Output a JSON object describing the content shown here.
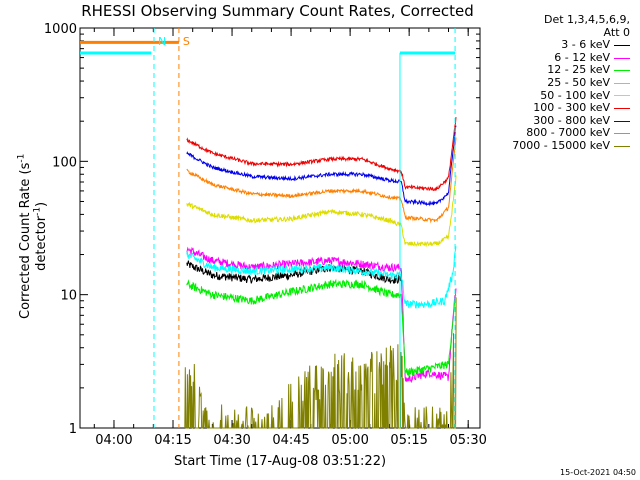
{
  "title": "RHESSI Observing Summary Count Rates, Corrected",
  "legend": {
    "header": "Det 1,3,4,5,6,9,",
    "header2": "Att 0",
    "entries": [
      {
        "label": "3 - 6 keV",
        "color": "#000000"
      },
      {
        "label": "6 - 12 keV",
        "color": "#ff00ff"
      },
      {
        "label": "12 - 25 keV",
        "color": "#00ee00"
      },
      {
        "label": "25 - 50 keV",
        "color": "#00ffff"
      },
      {
        "label": "50 - 100 keV",
        "color": "#dddd00"
      },
      {
        "label": "100 - 300 keV",
        "color": "#ee0000"
      },
      {
        "label": "300 - 800 keV",
        "color": "#0000ee"
      },
      {
        "label": "800 - 7000 keV",
        "color": "#ff8000"
      },
      {
        "label": "7000 - 15000 keV",
        "color": "#808000"
      }
    ]
  },
  "timestamp": "15-Oct-2021 04:50",
  "chart_data": {
    "type": "line",
    "title": "RHESSI Observing Summary Count Rates, Corrected",
    "xlabel": "Start Time (17-Aug-08 03:51:22)",
    "ylabel_pre": "Corrected Count Rate (s",
    "ylabel_sup1": "-1",
    "ylabel_mid": " detector",
    "ylabel_sup2": "-1",
    "ylabel_post": ")",
    "y_scale": "log",
    "ylim": [
      1,
      1000
    ],
    "xlim": [
      "03:51:22",
      "05:33:00"
    ],
    "x_ticks": [
      "04:00",
      "04:15",
      "04:30",
      "04:45",
      "05:00",
      "05:15",
      "05:30"
    ],
    "y_ticks": [
      "1",
      "10",
      "100",
      "1000"
    ],
    "markers": [
      {
        "label": "N",
        "color": "#00ffff",
        "times": [
          "04:10:10",
          "05:26:40"
        ]
      },
      {
        "label": "S",
        "color": "#ff8000",
        "times": [
          "04:16:30"
        ]
      }
    ],
    "flags": [
      {
        "name": "N",
        "color": "#00ffff",
        "y": 650,
        "ranges": [
          [
            "03:51:22",
            "04:09:30"
          ],
          [
            "05:12:40",
            "05:26:40"
          ]
        ]
      },
      {
        "name": "S",
        "color": "#ff8000",
        "y": 780,
        "ranges": [
          [
            "03:51:22",
            "04:16:30"
          ]
        ]
      }
    ],
    "vertical_lines": [
      {
        "color": "#00ffff",
        "time": "05:12:40"
      }
    ],
    "series": [
      {
        "name": "3 - 6 keV",
        "color": "#000000",
        "noise": 0.07,
        "points": [
          [
            "04:18:30",
            17
          ],
          [
            "04:25",
            14
          ],
          [
            "04:35",
            13
          ],
          [
            "04:45",
            14
          ],
          [
            "04:55",
            16
          ],
          [
            "05:03",
            15
          ],
          [
            "05:10",
            13
          ],
          [
            "05:13",
            13
          ]
        ]
      },
      {
        "name": "6 - 12 keV",
        "color": "#ff00ff",
        "noise": 0.07,
        "points": [
          [
            "04:18:30",
            22
          ],
          [
            "04:25",
            18
          ],
          [
            "04:35",
            16
          ],
          [
            "04:45",
            17
          ],
          [
            "04:55",
            18
          ],
          [
            "05:03",
            17
          ],
          [
            "05:10",
            16
          ],
          [
            "05:13",
            16
          ],
          [
            "05:14",
            2.3
          ],
          [
            "05:20",
            2.6
          ],
          [
            "05:25",
            2.4
          ],
          [
            "05:26",
            6
          ],
          [
            "05:27",
            12
          ]
        ]
      },
      {
        "name": "12 - 25 keV",
        "color": "#00ee00",
        "noise": 0.07,
        "points": [
          [
            "04:18:30",
            12
          ],
          [
            "04:25",
            10
          ],
          [
            "04:35",
            9
          ],
          [
            "04:45",
            10.5
          ],
          [
            "04:55",
            12
          ],
          [
            "05:03",
            12
          ],
          [
            "05:10",
            10
          ],
          [
            "05:13",
            10
          ],
          [
            "05:14",
            2.6
          ],
          [
            "05:20",
            2.8
          ],
          [
            "05:25",
            3
          ],
          [
            "05:26",
            6
          ],
          [
            "05:27",
            11
          ]
        ]
      },
      {
        "name": "25 - 50 keV",
        "color": "#00ffff",
        "noise": 0.07,
        "points": [
          [
            "04:18:30",
            20
          ],
          [
            "04:25",
            16
          ],
          [
            "04:35",
            15
          ],
          [
            "04:45",
            15.5
          ],
          [
            "04:55",
            16
          ],
          [
            "05:03",
            15
          ],
          [
            "05:10",
            14
          ],
          [
            "05:13",
            14
          ],
          [
            "05:14",
            8.5
          ],
          [
            "05:20",
            8.5
          ],
          [
            "05:24",
            9
          ],
          [
            "05:26",
            14
          ],
          [
            "05:27",
            25
          ]
        ]
      },
      {
        "name": "50 - 100 keV",
        "color": "#dddd00",
        "noise": 0.04,
        "points": [
          [
            "04:18:30",
            48
          ],
          [
            "04:25",
            40
          ],
          [
            "04:35",
            36
          ],
          [
            "04:45",
            37
          ],
          [
            "04:55",
            42
          ],
          [
            "05:03",
            40
          ],
          [
            "05:10",
            36
          ],
          [
            "05:13",
            33
          ],
          [
            "05:14",
            24
          ],
          [
            "05:22",
            24
          ],
          [
            "05:25",
            27
          ],
          [
            "05:26",
            45
          ],
          [
            "05:27",
            80
          ]
        ]
      },
      {
        "name": "100 - 300 keV",
        "color": "#ee0000",
        "noise": 0.03,
        "points": [
          [
            "04:18:30",
            145
          ],
          [
            "04:25",
            115
          ],
          [
            "04:35",
            96
          ],
          [
            "04:45",
            95
          ],
          [
            "04:55",
            104
          ],
          [
            "05:03",
            104
          ],
          [
            "05:10",
            88
          ],
          [
            "05:13",
            84
          ],
          [
            "05:14",
            64
          ],
          [
            "05:22",
            62
          ],
          [
            "05:25",
            75
          ],
          [
            "05:26",
            130
          ],
          [
            "05:27",
            220
          ]
        ]
      },
      {
        "name": "300 - 800 keV",
        "color": "#0000ee",
        "noise": 0.03,
        "points": [
          [
            "04:18:30",
            115
          ],
          [
            "04:25",
            90
          ],
          [
            "04:35",
            77
          ],
          [
            "04:45",
            74
          ],
          [
            "04:55",
            80
          ],
          [
            "05:03",
            80
          ],
          [
            "05:10",
            72
          ],
          [
            "05:13",
            70
          ],
          [
            "05:14",
            50
          ],
          [
            "05:22",
            48
          ],
          [
            "05:25",
            58
          ],
          [
            "05:26",
            110
          ],
          [
            "05:27",
            200
          ]
        ]
      },
      {
        "name": "800 - 7000 keV",
        "color": "#ff8000",
        "noise": 0.03,
        "points": [
          [
            "04:18:30",
            85
          ],
          [
            "04:25",
            67
          ],
          [
            "04:35",
            57
          ],
          [
            "04:45",
            55
          ],
          [
            "04:55",
            60
          ],
          [
            "05:03",
            60
          ],
          [
            "05:10",
            54
          ],
          [
            "05:13",
            52
          ],
          [
            "05:14",
            38
          ],
          [
            "05:22",
            36
          ],
          [
            "05:25",
            45
          ],
          [
            "05:26",
            85
          ],
          [
            "05:27",
            160
          ]
        ]
      },
      {
        "name": "7000 - 15000 keV",
        "color": "#808000",
        "noise": 0.0,
        "sparse": true,
        "points": [
          [
            "04:18:00",
            3
          ],
          [
            "04:20",
            2.5
          ],
          [
            "04:23",
            1
          ],
          [
            "04:40",
            1
          ],
          [
            "04:48",
            2
          ],
          [
            "04:55",
            2.5
          ],
          [
            "05:05",
            2.5
          ],
          [
            "05:13",
            3
          ],
          [
            "05:14",
            1
          ],
          [
            "05:25",
            1
          ],
          [
            "05:27",
            8
          ]
        ]
      }
    ]
  }
}
